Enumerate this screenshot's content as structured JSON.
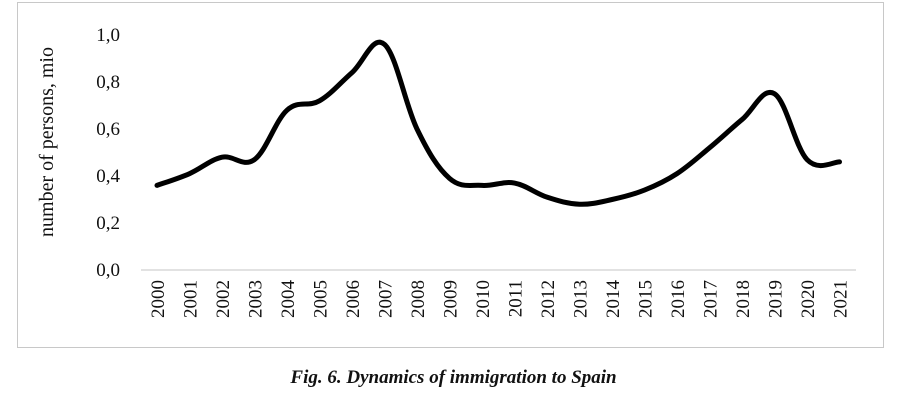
{
  "chart_data": {
    "type": "line",
    "title": "",
    "xlabel": "",
    "ylabel": "number of persons, mio",
    "ylim": [
      0,
      1.0
    ],
    "yticks": [
      "0,0",
      "0,2",
      "0,4",
      "0,6",
      "0,8",
      "1,0"
    ],
    "categories": [
      "2000",
      "2001",
      "2002",
      "2003",
      "2004",
      "2005",
      "2006",
      "2007",
      "2008",
      "2009",
      "2010",
      "2011",
      "2012",
      "2013",
      "2014",
      "2015",
      "2016",
      "2017",
      "2018",
      "2019",
      "2020",
      "2021"
    ],
    "series": [
      {
        "name": "Immigration to Spain",
        "values": [
          0.36,
          0.41,
          0.48,
          0.47,
          0.68,
          0.72,
          0.84,
          0.96,
          0.6,
          0.39,
          0.36,
          0.37,
          0.31,
          0.28,
          0.3,
          0.34,
          0.41,
          0.52,
          0.64,
          0.75,
          0.47,
          0.46
        ],
        "color": "#000000"
      }
    ]
  },
  "caption": "Fig. 6. Dynamics of immigration to Spain"
}
